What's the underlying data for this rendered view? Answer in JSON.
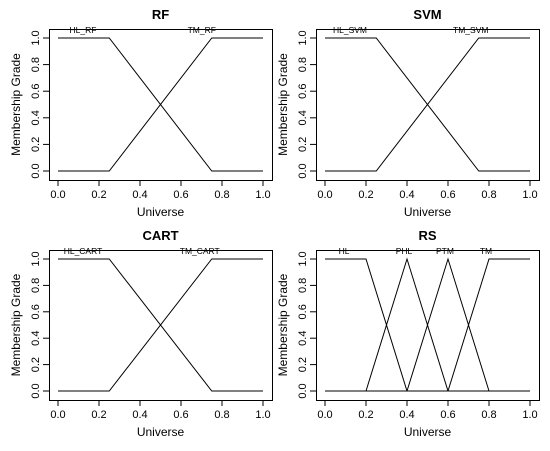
{
  "chart_data": [
    {
      "type": "line",
      "title": "RF",
      "xlabel": "Universe",
      "ylabel": "Membership Grade",
      "xlim": [
        0,
        1
      ],
      "ylim": [
        0,
        1
      ],
      "xticks": [
        "0.0",
        "0.2",
        "0.4",
        "0.6",
        "0.8",
        "1.0"
      ],
      "yticks": [
        "0.0",
        "0.2",
        "0.4",
        "0.6",
        "0.8",
        "1.0"
      ],
      "grid": false,
      "series": [
        {
          "name": "HL_RF",
          "color": "#000000",
          "x": [
            0,
            0.25,
            0.75,
            1
          ],
          "y": [
            1,
            1,
            0,
            0
          ]
        },
        {
          "name": "TM_RF",
          "color": "#000000",
          "x": [
            0,
            0.25,
            0.75,
            1
          ],
          "y": [
            0,
            0,
            1,
            1
          ]
        }
      ]
    },
    {
      "type": "line",
      "title": "SVM",
      "xlabel": "Universe",
      "ylabel": "Membership Grade",
      "xlim": [
        0,
        1
      ],
      "ylim": [
        0,
        1
      ],
      "xticks": [
        "0.0",
        "0.2",
        "0.4",
        "0.6",
        "0.8",
        "1.0"
      ],
      "yticks": [
        "0.0",
        "0.2",
        "0.4",
        "0.6",
        "0.8",
        "1.0"
      ],
      "grid": false,
      "series": [
        {
          "name": "HL_SVM",
          "color": "#000000",
          "x": [
            0,
            0.25,
            0.75,
            1
          ],
          "y": [
            1,
            1,
            0,
            0
          ]
        },
        {
          "name": "TM_SVM",
          "color": "#000000",
          "x": [
            0,
            0.25,
            0.75,
            1
          ],
          "y": [
            0,
            0,
            1,
            1
          ]
        }
      ]
    },
    {
      "type": "line",
      "title": "CART",
      "xlabel": "Universe",
      "ylabel": "Membership Grade",
      "xlim": [
        0,
        1
      ],
      "ylim": [
        0,
        1
      ],
      "xticks": [
        "0.0",
        "0.2",
        "0.4",
        "0.6",
        "0.8",
        "1.0"
      ],
      "yticks": [
        "0.0",
        "0.2",
        "0.4",
        "0.6",
        "0.8",
        "1.0"
      ],
      "grid": false,
      "series": [
        {
          "name": "HL_CART",
          "color": "#000000",
          "x": [
            0,
            0.25,
            0.75,
            1
          ],
          "y": [
            1,
            1,
            0,
            0
          ]
        },
        {
          "name": "TM_CART",
          "color": "#000000",
          "x": [
            0,
            0.25,
            0.75,
            1
          ],
          "y": [
            0,
            0,
            1,
            1
          ]
        }
      ]
    },
    {
      "type": "line",
      "title": "RS",
      "xlabel": "Universe",
      "ylabel": "Membership Grade",
      "xlim": [
        0,
        1
      ],
      "ylim": [
        0,
        1
      ],
      "xticks": [
        "0.0",
        "0.2",
        "0.4",
        "0.6",
        "0.8",
        "1.0"
      ],
      "yticks": [
        "0.0",
        "0.2",
        "0.4",
        "0.6",
        "0.8",
        "1.0"
      ],
      "grid": false,
      "series": [
        {
          "name": "HL",
          "color": "#000000",
          "x": [
            0,
            0.2,
            0.4,
            1
          ],
          "y": [
            1,
            1,
            0,
            0
          ]
        },
        {
          "name": "PHL",
          "color": "#000000",
          "x": [
            0,
            0.2,
            0.4,
            0.6,
            1
          ],
          "y": [
            0,
            0,
            1,
            0,
            0
          ]
        },
        {
          "name": "PTM",
          "color": "#000000",
          "x": [
            0,
            0.4,
            0.6,
            0.8,
            1
          ],
          "y": [
            0,
            0,
            1,
            0,
            0
          ]
        },
        {
          "name": "TM",
          "color": "#000000",
          "x": [
            0,
            0.6,
            0.8,
            1
          ],
          "y": [
            0,
            0,
            1,
            1
          ]
        }
      ]
    }
  ]
}
